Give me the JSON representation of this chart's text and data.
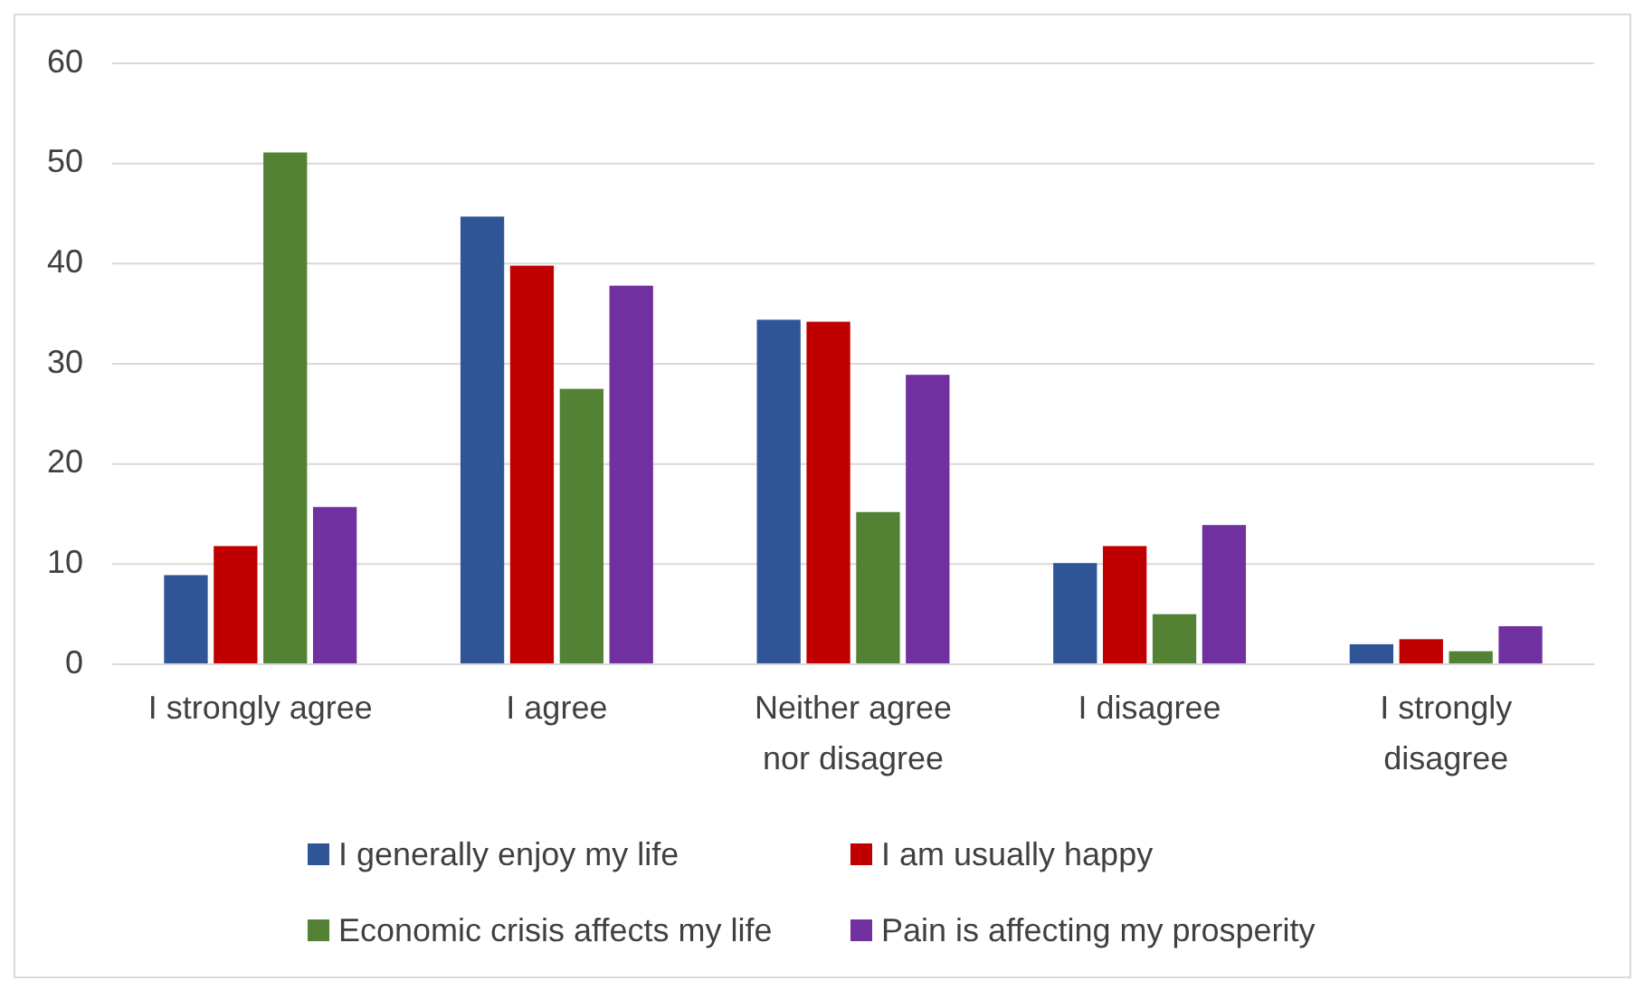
{
  "chart_data": {
    "type": "bar",
    "categories": [
      "I strongly agree",
      "I agree",
      "Neither agree nor disagree",
      "I disagree",
      "I strongly disagree"
    ],
    "series": [
      {
        "name": "I generally enjoy my life",
        "color": "#2f5597",
        "values": [
          8.9,
          44.7,
          34.4,
          10.1,
          2.0
        ]
      },
      {
        "name": "I am usually happy",
        "color": "#c00000",
        "values": [
          11.8,
          39.8,
          34.2,
          11.8,
          2.5
        ]
      },
      {
        "name": "Economic crisis affects my life",
        "color": "#548235",
        "values": [
          51.1,
          27.5,
          15.2,
          5.0,
          1.3
        ]
      },
      {
        "name": "Pain is affecting my prosperity",
        "color": "#7030a0",
        "values": [
          15.7,
          37.8,
          28.9,
          13.9,
          3.8
        ]
      }
    ],
    "ylim": [
      0,
      60
    ],
    "yticks": [
      0,
      10,
      20,
      30,
      40,
      50,
      60
    ],
    "grid": "y",
    "legend": "bottom"
  }
}
